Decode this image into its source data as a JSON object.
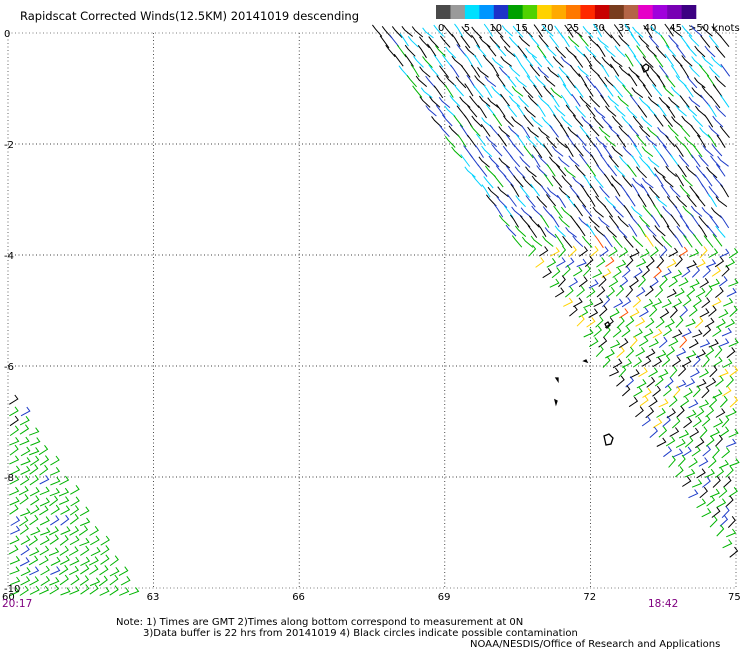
{
  "title": "Rapidscat Corrected Winds(12.5KM) 20141019 descending",
  "legend": {
    "labels": [
      "0",
      "5",
      "10",
      "15",
      "20",
      "25",
      "30",
      "35",
      "40",
      "45",
      ">50 knots"
    ],
    "colors": [
      "#4a4a4a",
      "#9a9a9a",
      "#00e0ff",
      "#0096ff",
      "#1e32c8",
      "#00a000",
      "#50d200",
      "#ffd200",
      "#ffaa00",
      "#ff7800",
      "#ff2800",
      "#c80000",
      "#783c1e",
      "#b46446",
      "#e600c8",
      "#a000dc",
      "#7800b4",
      "#3c0082"
    ]
  },
  "axes": {
    "lat_labels": [
      "0",
      "-2",
      "-4",
      "-6",
      "-8",
      "-10"
    ],
    "lon_labels": [
      "60",
      "63",
      "66",
      "69",
      "72",
      "75"
    ],
    "lat_range": [
      -10,
      0
    ],
    "lon_range": [
      60,
      75
    ]
  },
  "times": {
    "left": "20:17",
    "right": "18:42"
  },
  "note": {
    "line1": "Note: 1) Times are GMT 2)Times along bottom correspond to measurement at 0N",
    "line2": "3)Data buffer is 22 hrs from 20141019 4) Black circles indicate possible contamination",
    "credit": "NOAA/NESDIS/Office of Research and Applications"
  },
  "wind_colors": {
    "calm": "#000000",
    "light": "#00d2ff",
    "moderate": "#1e3cc8",
    "fresh": "#00b400",
    "strong": "#ffd200",
    "gale": "#ff5000"
  },
  "time_color": "#800080"
}
